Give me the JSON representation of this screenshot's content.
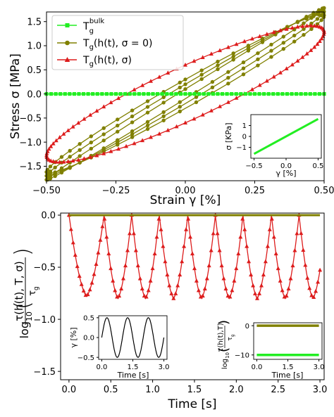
{
  "chart_data": [
    {
      "id": "top",
      "type": "line",
      "xlabel": "Strain γ [%]",
      "ylabel": "Stress σ [MPa]",
      "xlim": [
        -0.5,
        0.5
      ],
      "ylim": [
        -1.8,
        1.7
      ],
      "xticks": [
        "−0.50",
        "−0.25",
        "0.00",
        "0.25",
        "0.50"
      ],
      "xtick_values": [
        -0.5,
        -0.25,
        0.0,
        0.25,
        0.5
      ],
      "yticks": [
        "1.5",
        "1.0",
        "0.5",
        "0.0",
        "−0.5",
        "−1.0",
        "−1.5"
      ],
      "ytick_values": [
        1.5,
        1.0,
        0.5,
        0.0,
        -0.5,
        -1.0,
        -1.5
      ],
      "legend_position": "top-left",
      "series": [
        {
          "name": "T_g^bulk",
          "color": "#22ee22",
          "marker": "square",
          "curve": "constant",
          "y": 0.0
        },
        {
          "name": "T_g(h(t), σ = 0)",
          "color": "#808000",
          "marker": "circle",
          "curve": "loops",
          "cycles": 3,
          "amplitude_pairs": [
            [
              1.62,
              0.3
            ],
            [
              1.7,
              0.2
            ],
            [
              1.78,
              0.1
            ]
          ]
        },
        {
          "name": "T_g(h(t), σ)",
          "color": "#dd1c1c",
          "marker": "triangle",
          "curve": "loop",
          "amplitude": 1.28,
          "phase_amplitude": 0.6
        }
      ],
      "legend_labels": [
        {
          "base": "T",
          "sub": "g",
          "sup": "bulk",
          "rest": ""
        },
        {
          "base": "T",
          "sub": "g",
          "sup": "",
          "rest": "(h(t), σ = 0)"
        },
        {
          "base": "T",
          "sub": "g",
          "sup": "",
          "rest": "(h(t), σ)"
        }
      ]
    },
    {
      "id": "top-inset",
      "type": "line",
      "xlabel": "γ [%]",
      "ylabel": "σ [KPa]",
      "xlim": [
        -0.55,
        0.55
      ],
      "ylim": [
        -2.0,
        2.0
      ],
      "xticks": [
        "−0.5",
        "0.0",
        "0.5"
      ],
      "xtick_values": [
        -0.5,
        0.0,
        0.5
      ],
      "yticks": [
        "1",
        "0",
        "−1"
      ],
      "ytick_values": [
        1,
        0,
        -1
      ],
      "series": [
        {
          "color": "#22ee22",
          "x": [
            -0.5,
            0.5
          ],
          "y": [
            -1.6,
            1.6
          ]
        }
      ]
    },
    {
      "id": "bottom",
      "type": "line",
      "xlabel": "Time [s]",
      "ylabel_parts": {
        "func": "log",
        "sub": "10",
        "num": "τ(h(t), T, σ)",
        "den_base": "τ",
        "den_sub": "g"
      },
      "xlim": [
        -0.1,
        3.05
      ],
      "ylim": [
        -1.58,
        0.02
      ],
      "xticks": [
        "0.0",
        "0.5",
        "1.0",
        "1.5",
        "2.0",
        "2.5",
        "3.0"
      ],
      "xtick_values": [
        0.0,
        0.5,
        1.0,
        1.5,
        2.0,
        2.5,
        3.0
      ],
      "yticks": [
        "0.0",
        "−0.5",
        "−1.0",
        "−1.5"
      ],
      "ytick_values": [
        0.0,
        -0.5,
        -1.0,
        -1.5
      ],
      "series": [
        {
          "color": "#808000",
          "marker": "circle",
          "y": 0.0
        },
        {
          "color": "#dd1c1c",
          "marker": "triangle",
          "peaks_t": [
            0.0,
            0.42,
            0.75,
            1.08,
            1.42,
            1.75,
            2.08,
            2.42,
            2.75
          ],
          "minima_t": [
            0.17,
            0.58,
            0.92,
            1.25,
            1.58,
            1.92,
            2.25,
            2.58,
            2.92
          ],
          "minima_y": [
            -0.78,
            -0.8,
            -0.8,
            -0.8,
            -0.8,
            -0.8,
            -0.8,
            -0.8,
            -0.8
          ]
        }
      ]
    },
    {
      "id": "bottom-inset-left",
      "type": "line",
      "xlabel": "Time [s]",
      "ylabel": "γ [%]",
      "xlim": [
        -0.15,
        3.15
      ],
      "ylim": [
        -0.55,
        0.55
      ],
      "xticks": [
        "0.0",
        "1.5",
        "3.0"
      ],
      "xtick_values": [
        0.0,
        1.5,
        3.0
      ],
      "yticks": [
        "0.5",
        "0.0",
        "−0.5"
      ],
      "ytick_values": [
        0.5,
        0.0,
        -0.5
      ],
      "series": [
        {
          "color": "#000000",
          "amplitude": 0.5,
          "frequency": 1.0
        }
      ]
    },
    {
      "id": "bottom-inset-right",
      "type": "line",
      "xlabel": "Time [s]",
      "ylabel_parts": {
        "func": "log",
        "sub": "10",
        "num": "τ(h(t),T)",
        "den_base": "τ",
        "den_sub": "g"
      },
      "xlim": [
        -0.15,
        3.15
      ],
      "ylim": [
        -11.5,
        1.0
      ],
      "xticks": [
        "0.0",
        "1.5",
        "3.0"
      ],
      "xtick_values": [
        0.0,
        1.5,
        3.0
      ],
      "yticks": [
        "0",
        "−10"
      ],
      "ytick_values": [
        0,
        -10
      ],
      "series": [
        {
          "color": "#808000",
          "y": 0.0
        },
        {
          "color": "#22ee22",
          "y": -10.0
        }
      ]
    }
  ]
}
